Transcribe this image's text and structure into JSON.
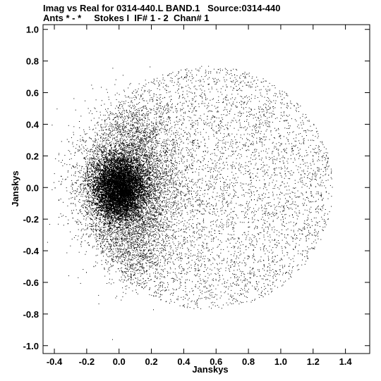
{
  "header": {
    "line1": "Imag vs Real for 0314-440.L BAND.1   Source:0314-440",
    "line2": "Ants * - *     Stokes I  IF# 1 - 2  Chan# 1"
  },
  "chart_data": {
    "type": "scatter",
    "xlabel": "Janskys",
    "ylabel": "Janskys",
    "xlim": [
      -0.47,
      1.55
    ],
    "ylim": [
      -1.05,
      1.03
    ],
    "xticks": [
      -0.4,
      -0.2,
      0.0,
      0.2,
      0.4,
      0.6,
      0.8,
      1.0,
      1.2,
      1.4
    ],
    "xtick_labels": [
      "-0.4",
      "-0.2",
      "0.0",
      "0.2",
      "0.4",
      "0.6",
      "0.8",
      "1.0",
      "1.2",
      "1.4"
    ],
    "yticks": [
      1.0,
      0.8,
      0.6,
      0.4,
      0.2,
      0.0,
      -0.2,
      -0.4,
      -0.6,
      -0.8,
      -1.0
    ],
    "ytick_labels": [
      "1.0",
      "0.8",
      "0.6",
      "0.4",
      "0.2",
      "0.0",
      "-0.2",
      "-0.4",
      "-0.6",
      "-0.8",
      "-1.0"
    ],
    "grid": false,
    "marker_color": "#000000",
    "clusters": [
      {
        "center": [
          0.0,
          0.0
        ],
        "spread": [
          0.075,
          0.095
        ],
        "count": 22000
      },
      {
        "center": [
          0.05,
          0.0
        ],
        "spread": [
          0.16,
          0.2
        ],
        "count": 5500
      },
      {
        "center": [
          0.1,
          -0.4
        ],
        "spread": [
          0.1,
          0.12
        ],
        "count": 700
      },
      {
        "center": [
          0.1,
          0.35
        ],
        "spread": [
          0.1,
          0.12
        ],
        "count": 600
      }
    ],
    "arc": {
      "center": [
        0.55,
        0.0
      ],
      "radius": [
        0.77,
        0.77
      ],
      "count": 5200
    }
  }
}
